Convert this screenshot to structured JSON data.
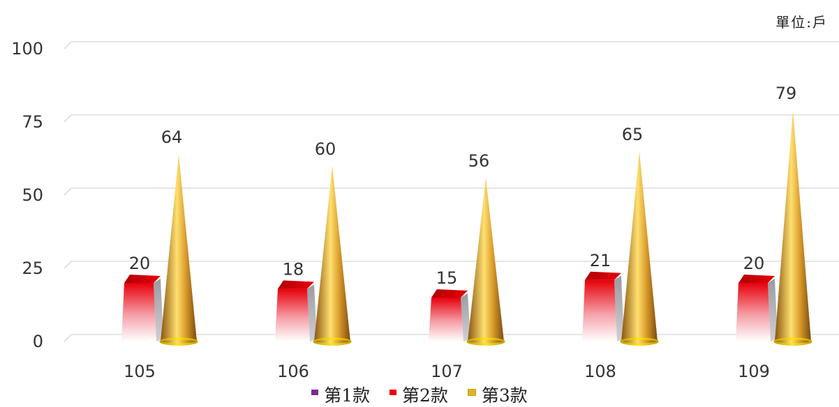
{
  "unit_label": "單位:戶",
  "chart_data": {
    "type": "bar",
    "categories": [
      "105",
      "106",
      "107",
      "108",
      "109"
    ],
    "series": [
      {
        "name": "第1款",
        "values": [
          0,
          0,
          0,
          0,
          0
        ],
        "color": "#7b2a8f"
      },
      {
        "name": "第2款",
        "values": [
          20,
          18,
          15,
          21,
          20
        ],
        "color": "#e8000a"
      },
      {
        "name": "第3款",
        "values": [
          64,
          60,
          56,
          65,
          79
        ],
        "color": "#d4a030"
      }
    ],
    "data_labels": {
      "第2款": [
        "20",
        "18",
        "15",
        "21",
        "20"
      ],
      "第3款": [
        "64",
        "60",
        "56",
        "65",
        "79"
      ]
    },
    "y_ticks": [
      "0",
      "25",
      "50",
      "75",
      "100"
    ],
    "ylim": [
      0,
      100
    ],
    "grid": true,
    "legend_position": "bottom"
  }
}
